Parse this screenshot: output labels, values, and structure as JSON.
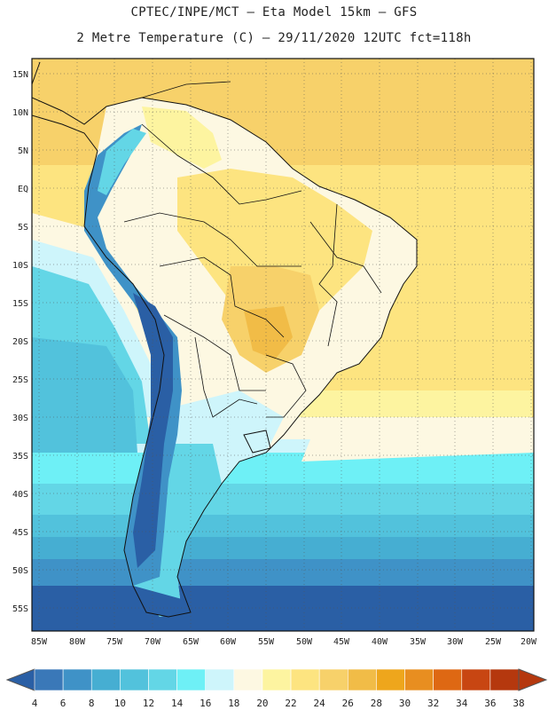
{
  "header": {
    "line1": "CPTEC/INPE/MCT –  Eta Model 15km – GFS",
    "line2": "2 Metre Temperature (C) – 29/11/2020 12UTC fct=118h"
  },
  "map": {
    "lat_labels": [
      "15N",
      "10N",
      "5N",
      "EQ",
      "5S",
      "10S",
      "15S",
      "20S",
      "25S",
      "30S",
      "35S",
      "40S",
      "45S",
      "50S",
      "55S"
    ],
    "lon_labels": [
      "85W",
      "80W",
      "75W",
      "70W",
      "65W",
      "60W",
      "55W",
      "50W",
      "45W",
      "40W",
      "35W",
      "30W",
      "25W",
      "20W"
    ]
  },
  "colorbar": {
    "ticks": [
      "4",
      "6",
      "8",
      "10",
      "12",
      "14",
      "16",
      "18",
      "20",
      "22",
      "24",
      "26",
      "28",
      "30",
      "32",
      "34",
      "36",
      "38"
    ],
    "colors": [
      "#2a5fa5",
      "#3a78b8",
      "#3f92c7",
      "#46aed2",
      "#52c2dc",
      "#63d6e6",
      "#6ef0f6",
      "#cef5fb",
      "#fdf8e2",
      "#fdf4a0",
      "#fde480",
      "#f7d16a",
      "#f1bc47",
      "#eea61c",
      "#e88e20",
      "#de6813",
      "#c84612",
      "#b5380e"
    ]
  }
}
